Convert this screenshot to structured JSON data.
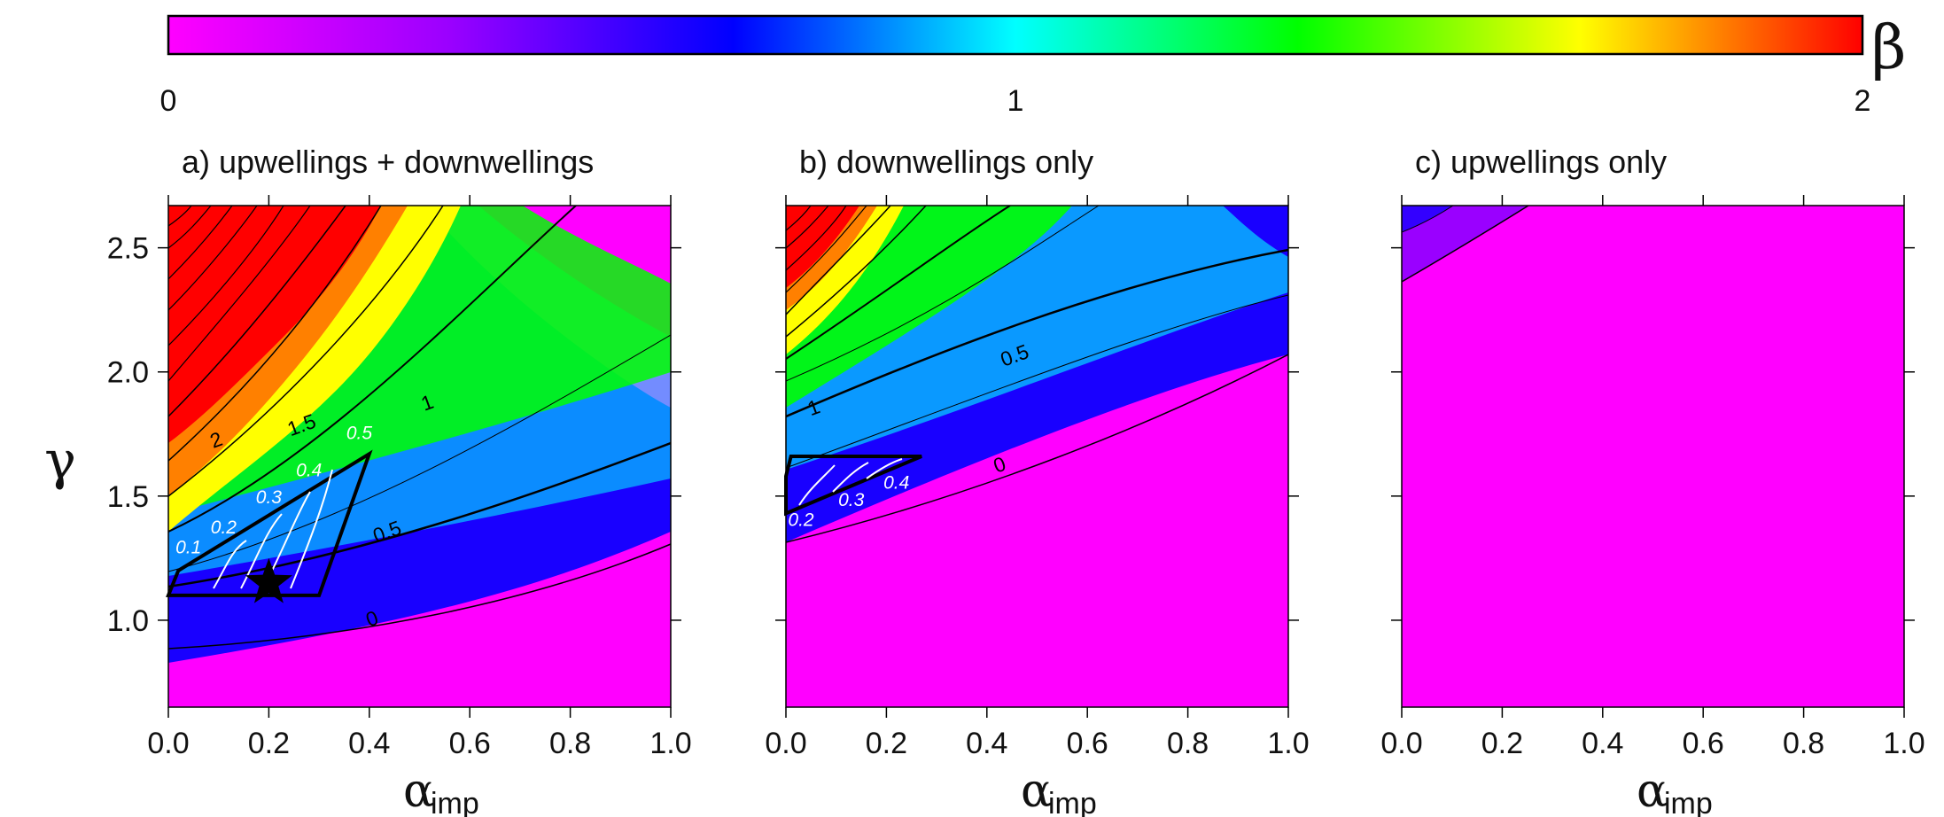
{
  "colorbar": {
    "symbol": "β",
    "ticks": [
      "0",
      "1",
      "2"
    ],
    "range": [
      0,
      2
    ],
    "colors": [
      "#ff00ff",
      "#9a00ff",
      "#0000ff",
      "#00ffff",
      "#00ff00",
      "#ffff00",
      "#ff0000"
    ]
  },
  "axes": {
    "ylabel": "γ",
    "xlabel_main": "α",
    "xlabel_sub": "imp",
    "xticks": [
      "0.0",
      "0.2",
      "0.4",
      "0.6",
      "0.8",
      "1.0"
    ],
    "yticks": [
      "1.0",
      "1.5",
      "2.0",
      "2.5"
    ]
  },
  "chart_data": [
    {
      "type": "heatmap",
      "title": "a) upwellings + downwellings",
      "xlim": [
        0,
        1
      ],
      "ylim": [
        0.65,
        2.67
      ],
      "contour_levels": [
        0,
        0.25,
        0.5,
        0.75,
        1,
        1.25,
        1.5,
        1.75,
        2,
        2.25,
        2.5,
        2.75,
        3,
        3.25,
        3.5
      ],
      "contour_labels": [
        {
          "text": "0",
          "x": 0.41,
          "y": 0.98
        },
        {
          "text": "0.5",
          "x": 0.44,
          "y": 1.33
        },
        {
          "text": "1",
          "x": 0.52,
          "y": 1.85
        },
        {
          "text": "1.5",
          "x": 0.27,
          "y": 1.76
        },
        {
          "text": "2",
          "x": 0.1,
          "y": 1.7
        }
      ],
      "region": {
        "points": [
          [
            0.0,
            1.1
          ],
          [
            0.3,
            1.1
          ],
          [
            0.4,
            1.67
          ],
          [
            0.02,
            1.2
          ]
        ]
      },
      "region_labels": [
        {
          "text": "0.1",
          "x": 0.04,
          "y": 1.27
        },
        {
          "text": "0.2",
          "x": 0.11,
          "y": 1.35
        },
        {
          "text": "0.3",
          "x": 0.2,
          "y": 1.47
        },
        {
          "text": "0.4",
          "x": 0.28,
          "y": 1.58
        },
        {
          "text": "0.5",
          "x": 0.38,
          "y": 1.73
        }
      ],
      "marker": {
        "shape": "star",
        "x": 0.2,
        "y": 1.15
      }
    },
    {
      "type": "heatmap",
      "title": "b) downwellings only",
      "xlim": [
        0,
        1
      ],
      "ylim": [
        0.65,
        2.67
      ],
      "contour_levels": [
        0,
        0.25,
        0.5,
        0.75,
        1,
        1.25,
        1.5,
        1.75,
        2,
        2.25,
        2.5,
        2.75,
        3
      ],
      "contour_labels": [
        {
          "text": "0",
          "x": 0.43,
          "y": 1.6
        },
        {
          "text": "0.5",
          "x": 0.46,
          "y": 2.04
        },
        {
          "text": "1",
          "x": 0.06,
          "y": 1.83
        }
      ],
      "region": {
        "points": [
          [
            0.0,
            1.43
          ],
          [
            0.27,
            1.66
          ],
          [
            0.01,
            1.66
          ],
          [
            0.0,
            1.58
          ]
        ]
      },
      "region_labels": [
        {
          "text": "0.2",
          "x": 0.03,
          "y": 1.38
        },
        {
          "text": "0.3",
          "x": 0.13,
          "y": 1.46
        },
        {
          "text": "0.4",
          "x": 0.22,
          "y": 1.53
        }
      ]
    },
    {
      "type": "heatmap",
      "title": "c) upwellings only",
      "xlim": [
        0,
        1
      ],
      "ylim": [
        0.65,
        2.67
      ],
      "contour_levels": [
        0,
        0.25
      ]
    }
  ]
}
